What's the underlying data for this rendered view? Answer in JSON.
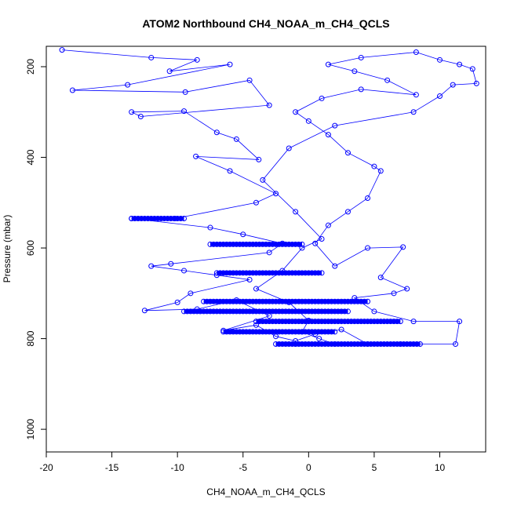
{
  "chart_data": {
    "type": "scatter",
    "title": "ATOM2 Northbound CH4_NOAA_m_CH4_QCLS",
    "xlabel": "CH4_NOAA_m_CH4_QCLS",
    "ylabel": "Pressure (mbar)",
    "xlim": [
      -20,
      13.5
    ],
    "ylim": [
      1050,
      155
    ],
    "y_reversed": true,
    "x_ticks": [
      -20,
      -15,
      -10,
      -5,
      0,
      5,
      10
    ],
    "y_ticks": [
      200,
      400,
      600,
      800,
      1000
    ],
    "grid": false,
    "legend": "none",
    "connected": true,
    "marker": "open-circle",
    "color": "#0000ff",
    "series": [
      {
        "points": [
          [
            -18.8,
            163
          ],
          [
            -12.0,
            180
          ],
          [
            -8.5,
            185
          ],
          [
            -10.6,
            210
          ],
          [
            -6.0,
            195
          ],
          [
            -13.8,
            240
          ],
          [
            -18.0,
            252
          ],
          [
            -9.4,
            256
          ],
          [
            -4.5,
            230
          ],
          [
            -3.0,
            285
          ],
          [
            -12.8,
            310
          ],
          [
            -13.5,
            300
          ],
          [
            -9.5,
            298
          ],
          [
            -7.0,
            345
          ],
          [
            -5.5,
            360
          ],
          [
            -3.8,
            405
          ],
          [
            -8.6,
            398
          ],
          [
            -6.0,
            430
          ],
          [
            -2.5,
            480
          ],
          [
            -4.0,
            500
          ],
          [
            -10.2,
            535
          ],
          [
            -13.5,
            535
          ],
          [
            -7.5,
            555
          ],
          [
            -5.0,
            570
          ],
          [
            -2.0,
            590
          ],
          [
            -3.0,
            610
          ],
          [
            -10.5,
            635
          ],
          [
            -12.0,
            640
          ],
          [
            -9.5,
            650
          ],
          [
            -7.0,
            660
          ],
          [
            -4.5,
            670
          ],
          [
            -9.0,
            700
          ],
          [
            -10.0,
            720
          ],
          [
            -12.5,
            738
          ],
          [
            -8.5,
            735
          ],
          [
            -5.5,
            715
          ],
          [
            -3.0,
            750
          ],
          [
            -6.5,
            782
          ],
          [
            -4.0,
            770
          ],
          [
            -2.5,
            795
          ],
          [
            -1.0,
            805
          ],
          [
            0.5,
            790
          ],
          [
            2.5,
            780
          ],
          [
            4.5,
            812
          ],
          [
            7.0,
            812
          ],
          [
            11.2,
            812
          ],
          [
            11.5,
            762
          ],
          [
            8.0,
            762
          ],
          [
            5.0,
            740
          ],
          [
            3.5,
            710
          ],
          [
            6.5,
            700
          ],
          [
            7.5,
            690
          ],
          [
            5.5,
            665
          ],
          [
            7.2,
            598
          ],
          [
            4.5,
            600
          ],
          [
            2.0,
            640
          ],
          [
            0.5,
            590
          ],
          [
            1.5,
            550
          ],
          [
            3.0,
            520
          ],
          [
            4.5,
            490
          ],
          [
            5.5,
            430
          ],
          [
            5.0,
            420
          ],
          [
            3.0,
            390
          ],
          [
            1.5,
            350
          ],
          [
            0.0,
            320
          ],
          [
            -1.0,
            300
          ],
          [
            1.0,
            270
          ],
          [
            4.0,
            250
          ],
          [
            8.2,
            262
          ],
          [
            6.0,
            230
          ],
          [
            3.5,
            210
          ],
          [
            1.5,
            195
          ],
          [
            4.0,
            180
          ],
          [
            8.2,
            168
          ],
          [
            10.0,
            185
          ],
          [
            11.5,
            195
          ],
          [
            12.5,
            205
          ],
          [
            12.8,
            237
          ],
          [
            11.0,
            240
          ],
          [
            10.0,
            265
          ],
          [
            8.0,
            300
          ],
          [
            2.0,
            330
          ],
          [
            -1.5,
            380
          ],
          [
            -3.5,
            450
          ],
          [
            -1.0,
            520
          ],
          [
            1.0,
            580
          ],
          [
            -0.5,
            600
          ],
          [
            -2.0,
            650
          ],
          [
            -4.0,
            690
          ],
          [
            -1.5,
            720
          ],
          [
            0.0,
            760
          ],
          [
            -0.5,
            785
          ],
          [
            0.8,
            800
          ],
          [
            2.0,
            812
          ],
          [
            -1.0,
            812
          ]
        ]
      }
    ],
    "dense_bands": [
      {
        "pressure": 592,
        "x_range": [
          -7.5,
          -0.5
        ]
      },
      {
        "pressure": 655,
        "x_range": [
          -7.0,
          1.0
        ]
      },
      {
        "pressure": 718,
        "x_range": [
          -8.0,
          4.5
        ]
      },
      {
        "pressure": 740,
        "x_range": [
          -9.5,
          3.0
        ]
      },
      {
        "pressure": 762,
        "x_range": [
          -4.0,
          7.0
        ]
      },
      {
        "pressure": 785,
        "x_range": [
          -6.5,
          2.0
        ]
      },
      {
        "pressure": 812,
        "x_range": [
          -2.5,
          8.5
        ]
      },
      {
        "pressure": 535,
        "x_range": [
          -13.5,
          -9.5
        ]
      }
    ]
  }
}
